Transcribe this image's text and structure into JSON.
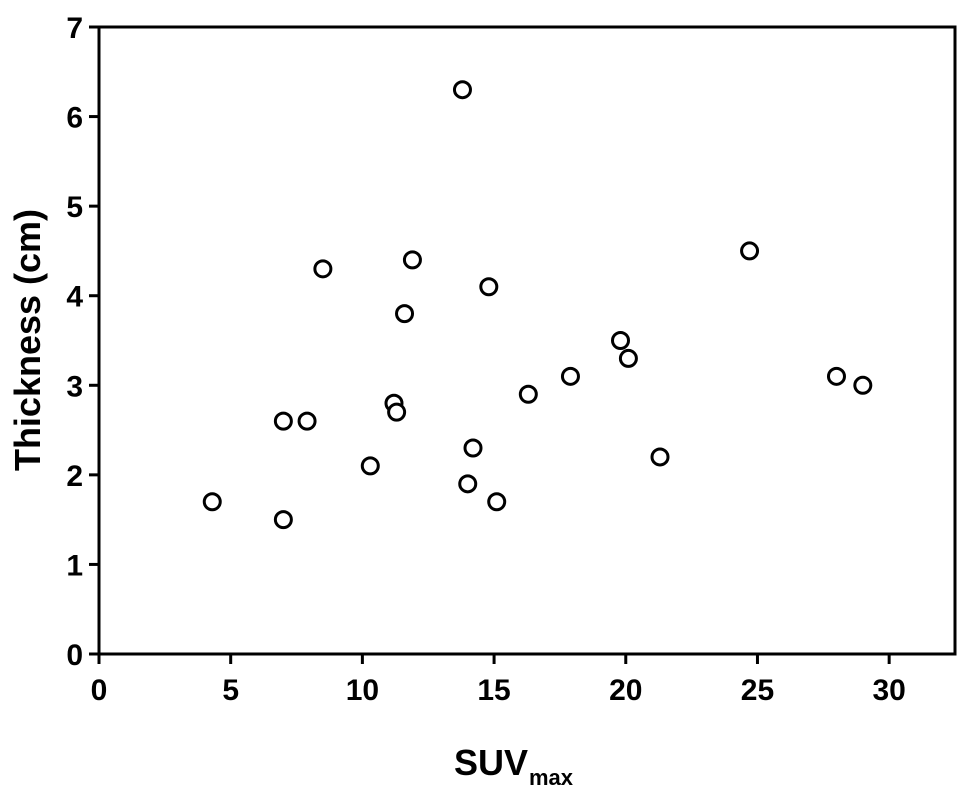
{
  "chart_data": {
    "type": "scatter",
    "xlabel": "SUV",
    "xlabel_subscript": "max",
    "ylabel": "Thickness (cm)",
    "xlim": [
      0,
      32.5
    ],
    "ylim": [
      0,
      7
    ],
    "xticks": [
      0,
      5,
      10,
      15,
      20,
      25,
      30
    ],
    "yticks": [
      0,
      1,
      2,
      3,
      4,
      5,
      6,
      7
    ],
    "grid": false,
    "marker": "open-circle",
    "marker_color": "#000000",
    "points": [
      {
        "x": 4.3,
        "y": 1.7
      },
      {
        "x": 7.0,
        "y": 2.6
      },
      {
        "x": 7.0,
        "y": 1.5
      },
      {
        "x": 7.9,
        "y": 2.6
      },
      {
        "x": 8.5,
        "y": 4.3
      },
      {
        "x": 10.3,
        "y": 2.1
      },
      {
        "x": 11.2,
        "y": 2.8
      },
      {
        "x": 11.3,
        "y": 2.7
      },
      {
        "x": 11.6,
        "y": 3.8
      },
      {
        "x": 11.9,
        "y": 4.4
      },
      {
        "x": 13.8,
        "y": 6.3
      },
      {
        "x": 14.0,
        "y": 1.9
      },
      {
        "x": 14.2,
        "y": 2.3
      },
      {
        "x": 14.8,
        "y": 4.1
      },
      {
        "x": 15.1,
        "y": 1.7
      },
      {
        "x": 16.3,
        "y": 2.9
      },
      {
        "x": 17.9,
        "y": 3.1
      },
      {
        "x": 19.8,
        "y": 3.5
      },
      {
        "x": 20.1,
        "y": 3.3
      },
      {
        "x": 21.3,
        "y": 2.2
      },
      {
        "x": 24.7,
        "y": 4.5
      },
      {
        "x": 28.0,
        "y": 3.1
      },
      {
        "x": 29.0,
        "y": 3.0
      }
    ]
  }
}
